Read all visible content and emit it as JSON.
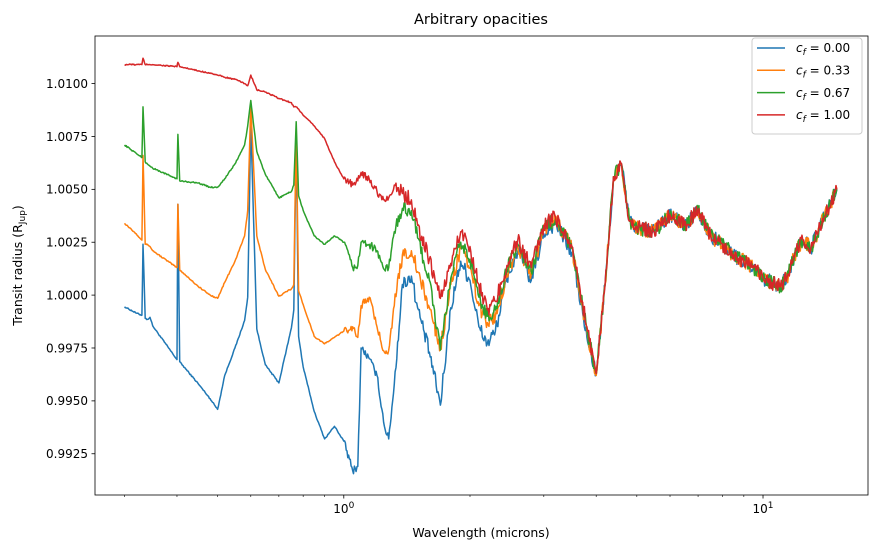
{
  "chart_data": {
    "type": "line",
    "title": "Arbitrary opacities",
    "xlabel": "Wavelength (microns)",
    "ylabel": "Transit radius (R_Jup)",
    "ylabel_main": "Transit radius (R",
    "ylabel_sub": "Jup",
    "ylabel_close": ")",
    "x_scale": "log",
    "xlim": [
      0.255,
      17.8
    ],
    "ylim": [
      0.99055,
      1.01225
    ],
    "x_ticks": [
      {
        "value": 1,
        "base": "10",
        "exp": "0"
      },
      {
        "value": 10,
        "base": "10",
        "exp": "1"
      }
    ],
    "y_ticks": [
      0.9925,
      0.995,
      0.9975,
      1.0,
      1.0025,
      1.005,
      1.0075,
      1.01
    ],
    "y_tick_labels": [
      "0.9925",
      "0.9950",
      "0.9975",
      "1.0000",
      "1.0025",
      "1.0050",
      "1.0075",
      "1.0100"
    ],
    "grid": false,
    "legend_position": "upper-right",
    "series": [
      {
        "name": "c_f = 0.00",
        "legend_var": "c",
        "legend_sub": "f",
        "legend_val": " = 0.00",
        "color": "#1f77b4",
        "x": [
          0.3,
          0.32,
          0.33,
          0.332,
          0.336,
          0.34,
          0.345,
          0.35,
          0.4,
          0.402,
          0.406,
          0.45,
          0.48,
          0.5,
          0.52,
          0.55,
          0.58,
          0.59,
          0.6,
          0.62,
          0.65,
          0.7,
          0.75,
          0.76,
          0.77,
          0.78,
          0.8,
          0.85,
          0.9,
          0.95,
          1.0,
          1.05,
          1.08,
          1.1,
          1.15,
          1.2,
          1.25,
          1.28,
          1.32,
          1.38,
          1.45,
          1.5,
          1.6,
          1.7,
          1.8,
          1.9,
          2.0,
          2.1,
          2.2,
          2.3,
          2.45,
          2.6,
          2.8,
          3.0,
          3.2,
          3.5,
          3.8,
          4.0,
          4.2,
          4.4,
          4.6,
          4.8,
          5.0,
          5.5,
          6.0,
          6.5,
          7.0,
          7.5,
          8.0,
          8.5,
          9.0,
          9.5,
          10.0,
          10.5,
          11.0,
          11.5,
          12.0,
          12.5,
          13.0,
          14.0,
          15.0
        ],
        "y": [
          0.99945,
          0.99915,
          0.99905,
          1.0024,
          0.9989,
          0.99885,
          0.99895,
          0.99855,
          0.99695,
          1.0043,
          0.99685,
          0.9958,
          0.9951,
          0.9946,
          0.9962,
          0.9975,
          0.9988,
          0.9999,
          1.0082,
          0.9984,
          0.9967,
          0.99585,
          0.99845,
          0.9993,
          1.0075,
          0.99805,
          0.9966,
          0.9945,
          0.9932,
          0.9938,
          0.9931,
          0.9917,
          0.9919,
          0.9975,
          0.997,
          0.9962,
          0.9938,
          0.9932,
          0.9958,
          1.0005,
          1.0009,
          0.9994,
          0.9973,
          0.9948,
          0.9994,
          1.0016,
          1.0007,
          0.9985,
          0.9977,
          0.9983,
          1.0008,
          1.0021,
          1.0007,
          1.0029,
          1.0034,
          1.002,
          0.998,
          0.99625,
          1.0005,
          1.0055,
          1.0062,
          1.0035,
          1.0032,
          1.003,
          1.0038,
          1.0033,
          1.004,
          1.0028,
          1.0024,
          1.0019,
          1.0016,
          1.0013,
          1.0008,
          1.0006,
          1.0004,
          1.001,
          1.0021,
          1.0026,
          1.0022,
          1.0037,
          1.005
        ]
      },
      {
        "name": "c_f = 0.33",
        "legend_var": "c",
        "legend_sub": "f",
        "legend_val": " = 0.33",
        "color": "#ff7f0e",
        "x": [
          0.3,
          0.32,
          0.33,
          0.332,
          0.336,
          0.34,
          0.345,
          0.35,
          0.4,
          0.402,
          0.406,
          0.45,
          0.48,
          0.5,
          0.52,
          0.55,
          0.58,
          0.59,
          0.6,
          0.62,
          0.65,
          0.7,
          0.75,
          0.76,
          0.77,
          0.78,
          0.8,
          0.85,
          0.9,
          0.95,
          1.0,
          1.05,
          1.08,
          1.1,
          1.15,
          1.2,
          1.25,
          1.28,
          1.32,
          1.38,
          1.45,
          1.5,
          1.6,
          1.7,
          1.8,
          1.9,
          2.0,
          2.1,
          2.2,
          2.3,
          2.45,
          2.6,
          2.8,
          3.0,
          3.2,
          3.5,
          3.8,
          4.0,
          4.2,
          4.4,
          4.6,
          4.8,
          5.0,
          5.5,
          6.0,
          6.5,
          7.0,
          7.5,
          8.0,
          8.5,
          9.0,
          9.5,
          10.0,
          10.5,
          11.0,
          11.5,
          12.0,
          12.5,
          13.0,
          14.0,
          15.0
        ],
        "y": [
          1.0034,
          1.0029,
          1.0026,
          1.0066,
          1.0024,
          1.0024,
          1.0023,
          1.0021,
          1.0013,
          1.0043,
          1.0012,
          1.0004,
          1.0,
          0.99985,
          1.0006,
          1.0016,
          1.0028,
          1.004,
          1.009,
          1.0028,
          1.0012,
          0.99995,
          1.0003,
          1.0005,
          1.0078,
          1.0002,
          0.99955,
          0.99805,
          0.9977,
          0.998,
          0.9983,
          0.9985,
          0.998,
          0.9995,
          0.9999,
          0.9985,
          0.9973,
          0.9974,
          0.9995,
          1.0019,
          1.0021,
          1.0011,
          0.9994,
          0.99745,
          1.0005,
          1.0022,
          1.0013,
          0.9995,
          0.9987,
          0.999,
          1.001,
          1.0023,
          1.001,
          1.0031,
          1.0036,
          1.0022,
          0.9983,
          0.9962,
          1.0005,
          1.0056,
          1.0062,
          1.0035,
          1.0032,
          1.003,
          1.0038,
          1.0033,
          1.004,
          1.0028,
          1.0024,
          1.0019,
          1.0016,
          1.0013,
          1.0008,
          1.0006,
          1.0004,
          1.001,
          1.0021,
          1.0026,
          1.0022,
          1.0037,
          1.005
        ]
      },
      {
        "name": "c_f = 0.67",
        "legend_var": "c",
        "legend_sub": "f",
        "legend_val": " = 0.67",
        "color": "#2ca02c",
        "x": [
          0.3,
          0.32,
          0.33,
          0.332,
          0.336,
          0.34,
          0.345,
          0.35,
          0.4,
          0.402,
          0.406,
          0.45,
          0.48,
          0.5,
          0.52,
          0.55,
          0.58,
          0.59,
          0.6,
          0.62,
          0.65,
          0.7,
          0.75,
          0.76,
          0.77,
          0.78,
          0.8,
          0.85,
          0.9,
          0.95,
          1.0,
          1.05,
          1.08,
          1.1,
          1.15,
          1.2,
          1.25,
          1.28,
          1.32,
          1.38,
          1.45,
          1.5,
          1.6,
          1.7,
          1.8,
          1.9,
          2.0,
          2.1,
          2.2,
          2.3,
          2.45,
          2.6,
          2.8,
          3.0,
          3.2,
          3.5,
          3.8,
          4.0,
          4.2,
          4.4,
          4.6,
          4.8,
          5.0,
          5.5,
          6.0,
          6.5,
          7.0,
          7.5,
          8.0,
          8.5,
          9.0,
          9.5,
          10.0,
          10.5,
          11.0,
          11.5,
          12.0,
          12.5,
          13.0,
          14.0,
          15.0
        ],
        "y": [
          1.0071,
          1.0067,
          1.0065,
          1.0089,
          1.0063,
          1.0062,
          1.0061,
          1.006,
          1.0055,
          1.0076,
          1.0054,
          1.0053,
          1.0051,
          1.0051,
          1.0055,
          1.0062,
          1.0071,
          1.008,
          1.0092,
          1.0068,
          1.0057,
          1.0046,
          1.0049,
          1.0052,
          1.0082,
          1.0047,
          1.004,
          1.0028,
          1.0024,
          1.0028,
          1.0025,
          1.0013,
          1.0014,
          1.0025,
          1.0024,
          1.0021,
          1.0012,
          1.0013,
          1.003,
          1.0041,
          1.004,
          1.0027,
          1.0007,
          0.9974,
          1.0008,
          1.0025,
          1.0017,
          0.9999,
          0.999,
          0.9993,
          1.0012,
          1.0024,
          1.0011,
          1.0032,
          1.0036,
          1.0022,
          0.9984,
          0.9963,
          1.0005,
          1.0056,
          1.0062,
          1.0035,
          1.0032,
          1.003,
          1.0038,
          1.0033,
          1.004,
          1.0028,
          1.0024,
          1.0019,
          1.0016,
          1.0013,
          1.0008,
          1.0006,
          1.0004,
          1.001,
          1.0021,
          1.0026,
          1.0022,
          1.0037,
          1.005
        ]
      },
      {
        "name": "c_f = 1.00",
        "legend_var": "c",
        "legend_sub": "f",
        "legend_val": " = 1.00",
        "color": "#d62728",
        "x": [
          0.3,
          0.32,
          0.33,
          0.332,
          0.336,
          0.34,
          0.345,
          0.35,
          0.4,
          0.402,
          0.406,
          0.45,
          0.48,
          0.5,
          0.52,
          0.55,
          0.58,
          0.59,
          0.6,
          0.62,
          0.65,
          0.7,
          0.75,
          0.76,
          0.77,
          0.78,
          0.8,
          0.85,
          0.9,
          0.95,
          1.0,
          1.05,
          1.08,
          1.1,
          1.15,
          1.2,
          1.25,
          1.28,
          1.32,
          1.38,
          1.45,
          1.5,
          1.6,
          1.7,
          1.8,
          1.9,
          2.0,
          2.1,
          2.2,
          2.3,
          2.45,
          2.6,
          2.8,
          3.0,
          3.2,
          3.5,
          3.8,
          4.0,
          4.2,
          4.4,
          4.6,
          4.8,
          5.0,
          5.5,
          6.0,
          6.5,
          7.0,
          7.5,
          8.0,
          8.5,
          9.0,
          9.5,
          10.0,
          10.5,
          11.0,
          11.5,
          12.0,
          12.5,
          13.0,
          14.0,
          15.0
        ],
        "y": [
          1.0109,
          1.0109,
          1.0109,
          1.0112,
          1.0109,
          1.0109,
          1.0109,
          1.0109,
          1.0108,
          1.011,
          1.0108,
          1.0106,
          1.0105,
          1.0104,
          1.0103,
          1.0102,
          1.01,
          1.0099,
          1.0104,
          1.0097,
          1.0096,
          1.0093,
          1.0091,
          1.0089,
          1.0089,
          1.0088,
          1.0085,
          1.008,
          1.0074,
          1.0063,
          1.0055,
          1.0052,
          1.0054,
          1.0058,
          1.0055,
          1.0049,
          1.0045,
          1.0046,
          1.0052,
          1.0048,
          1.0045,
          1.0033,
          1.0017,
          0.99985,
          1.0015,
          1.003,
          1.0023,
          1.0005,
          0.9993,
          0.9997,
          1.0014,
          1.0026,
          1.0013,
          1.0033,
          1.0037,
          1.0023,
          0.9985,
          0.9963,
          1.0005,
          1.0056,
          1.0062,
          1.0035,
          1.0032,
          1.003,
          1.0038,
          1.0033,
          1.004,
          1.0028,
          1.0024,
          1.0019,
          1.0016,
          1.0013,
          1.0008,
          1.0006,
          1.0004,
          1.001,
          1.0021,
          1.0026,
          1.0022,
          1.0037,
          1.005
        ]
      }
    ]
  }
}
